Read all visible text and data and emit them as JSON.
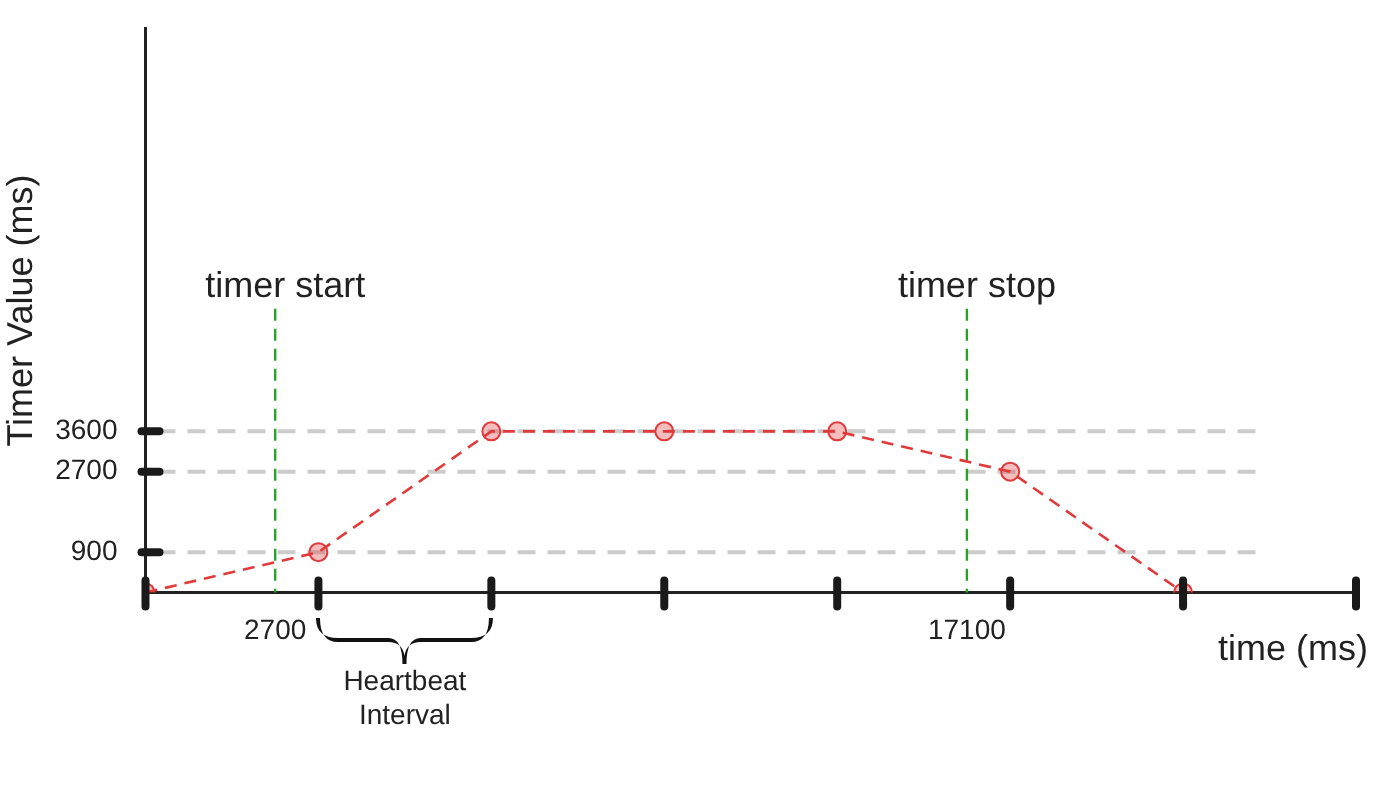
{
  "chart_data": {
    "type": "line",
    "xlabel": "time (ms)",
    "ylabel": "Timer Value (ms)",
    "x": [
      0,
      3600,
      7200,
      10800,
      14400,
      18000,
      21600
    ],
    "series": [
      {
        "color": "#e03a3a",
        "values": [
          0,
          900,
          3600,
          3600,
          3600,
          2700,
          0
        ]
      }
    ],
    "xlim": [
      0,
      25200
    ],
    "xticks": [
      {
        "value": 0,
        "label": null
      },
      {
        "value": 2700,
        "label": "2700"
      },
      {
        "value": 3600,
        "label": null
      },
      {
        "value": 7200,
        "label": null
      },
      {
        "value": 10800,
        "label": null
      },
      {
        "value": 14400,
        "label": null
      },
      {
        "value": 17100,
        "label": "17100"
      },
      {
        "value": 18000,
        "label": null
      },
      {
        "value": 21600,
        "label": null
      },
      {
        "value": 25200,
        "label": null
      }
    ],
    "ylim": [
      0,
      12600
    ],
    "yticks": [
      900,
      2700,
      3600
    ],
    "ref_lines": [
      {
        "axis": "x",
        "value": 2700,
        "label": "timer start",
        "color": "#2ca02c",
        "line_style": "dashed"
      },
      {
        "axis": "x",
        "value": 17100,
        "label": "timer stop",
        "color": "#2ca02c",
        "line_style": "dashed"
      }
    ],
    "annotations": [
      "Heartbeat Interval"
    ],
    "grid": "y",
    "legend": false,
    "marker": "circle",
    "line_style": "dashed"
  }
}
